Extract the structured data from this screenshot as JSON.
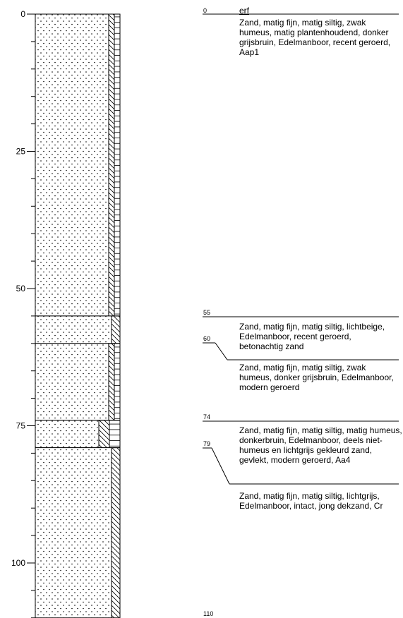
{
  "axis": {
    "ticks": [
      {
        "value": 0,
        "label": "0"
      },
      {
        "value": 25,
        "label": "25"
      },
      {
        "value": 50,
        "label": "50"
      },
      {
        "value": 75,
        "label": "75"
      },
      {
        "value": 100,
        "label": "100"
      }
    ]
  },
  "location": "erf",
  "depth_labels": {
    "d0": "0",
    "d55": "55",
    "d60": "60",
    "d74": "74",
    "d79": "79",
    "d110": "110"
  },
  "layers": [
    {
      "top": 0,
      "bottom": 55,
      "sand_fraction": 0.87,
      "columns": [
        "sand",
        "humus",
        "silt"
      ],
      "description": "Zand, matig fijn, matig siltig, zwak humeus, matig plantenhoudend, donker grijsbruin, Edelmanboor, recent geroerd, Aap1"
    },
    {
      "top": 55,
      "bottom": 60,
      "sand_fraction": 0.9,
      "columns": [
        "sand",
        "humus"
      ],
      "description": "Zand, matig fijn, matig siltig, lichtbeige, Edelmanboor, recent geroerd, betonachtig zand"
    },
    {
      "top": 60,
      "bottom": 74,
      "sand_fraction": 0.87,
      "columns": [
        "sand",
        "humus",
        "silt"
      ],
      "description": "Zand, matig fijn, matig siltig, zwak humeus, donker grijsbruin, Edelmanboor, modern geroerd"
    },
    {
      "top": 74,
      "bottom": 79,
      "sand_fraction": 0.75,
      "columns": [
        "sand",
        "humus",
        "silt"
      ],
      "description": "Zand, matig fijn, matig siltig, matig humeus, donkerbruin, Edelmanboor, deels niet-humeus en lichtgrijs gekleurd zand, gevlekt, modern geroerd, Aa4"
    },
    {
      "top": 79,
      "bottom": 110,
      "sand_fraction": 0.9,
      "columns": [
        "sand",
        "humus"
      ],
      "description": "Zand, matig fijn, matig siltig, lichtgrijs, Edelmanboor, intact, jong dekzand, Cr"
    }
  ]
}
